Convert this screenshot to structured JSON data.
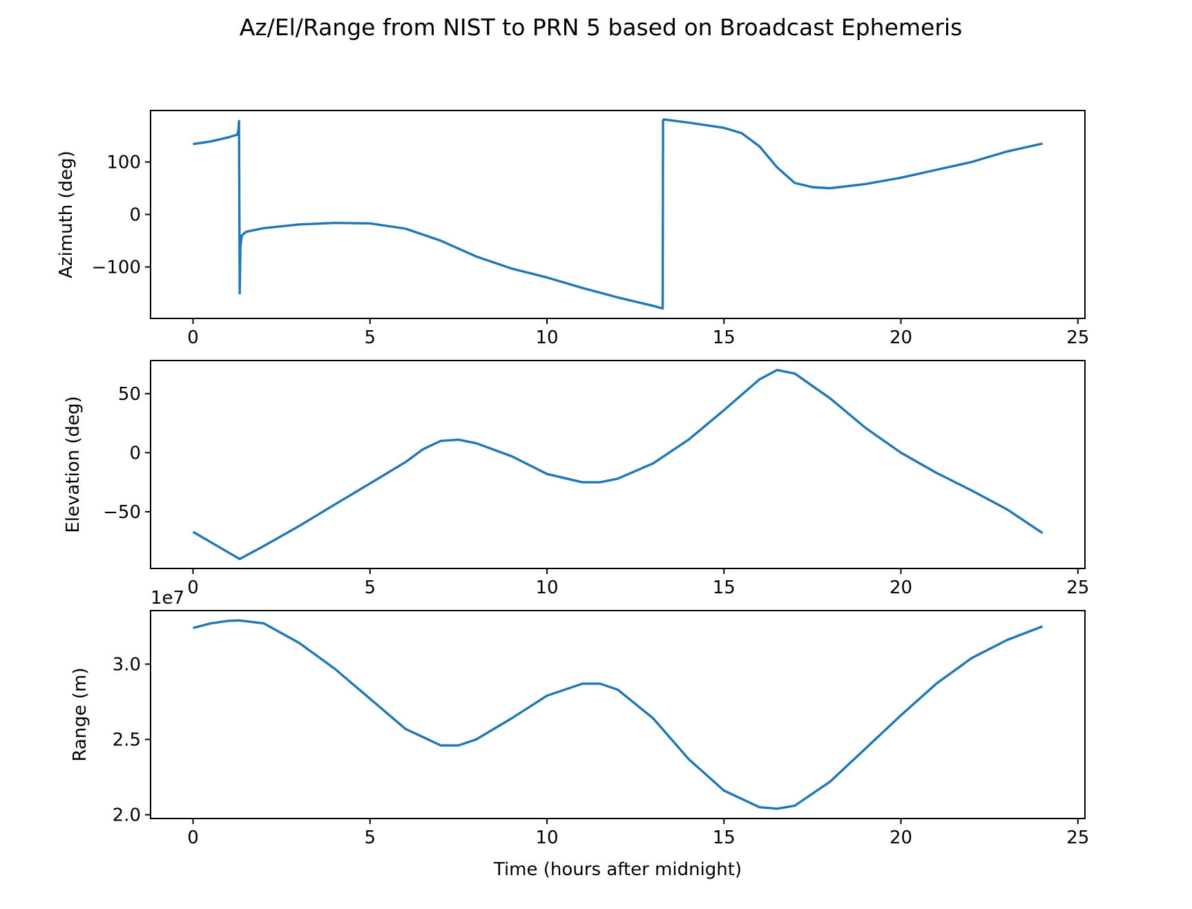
{
  "figure": {
    "title": "Az/El/Range from NIST to PRN 5 based on Broadcast Ephemeris"
  },
  "colors": {
    "series": "#1f77b4",
    "axes": "#000000",
    "background": "#ffffff"
  },
  "chart_data": [
    {
      "type": "line",
      "title": "",
      "xlabel": "",
      "ylabel": "Azimuth (deg)",
      "xlim": [
        -1.2,
        25.2
      ],
      "ylim": [
        -198,
        198
      ],
      "grid": false,
      "legend": "none",
      "xticks": [
        0,
        5,
        10,
        15,
        20,
        25
      ],
      "xtick_labels": [
        "0",
        "5",
        "10",
        "15",
        "20",
        "25"
      ],
      "yticks": [
        100,
        0,
        -100
      ],
      "ytick_labels": [
        "100",
        "0",
        "−100"
      ],
      "offset_text": "",
      "series": [
        {
          "name": "",
          "x": [
            0,
            0.5,
            1.0,
            1.25,
            1.28,
            1.3,
            1.32,
            1.34,
            1.38,
            1.5,
            2,
            3,
            4,
            5,
            6,
            7,
            8,
            9,
            10,
            11,
            12,
            13,
            13.27,
            13.28,
            13.3,
            14,
            15,
            15.5,
            16,
            16.5,
            17,
            17.5,
            18,
            19,
            20,
            21,
            22,
            23,
            24
          ],
          "y": [
            134,
            139,
            147,
            152,
            160,
            178,
            -150,
            -60,
            -40,
            -33,
            -26,
            -19,
            -16,
            -17,
            -27,
            -50,
            -80,
            -103,
            -120,
            -140,
            -158,
            -174,
            -179,
            179,
            181,
            175,
            165,
            155,
            130,
            90,
            60,
            52,
            50,
            58,
            70,
            85,
            100,
            120,
            135
          ]
        }
      ]
    },
    {
      "type": "line",
      "title": "",
      "xlabel": "",
      "ylabel": "Elevation (deg)",
      "xlim": [
        -1.2,
        25.2
      ],
      "ylim": [
        -98,
        78
      ],
      "grid": false,
      "legend": "none",
      "xticks": [
        0,
        5,
        10,
        15,
        20,
        25
      ],
      "xtick_labels": [
        "0",
        "5",
        "10",
        "15",
        "20",
        "25"
      ],
      "yticks": [
        50,
        0,
        -50
      ],
      "ytick_labels": [
        "50",
        "0",
        "−50"
      ],
      "offset_text": "",
      "series": [
        {
          "name": "",
          "x": [
            0,
            1.32,
            2,
            3,
            4,
            5,
            6,
            6.5,
            7,
            7.5,
            8,
            9,
            10,
            11,
            11.5,
            12,
            13,
            14,
            15,
            16,
            16.5,
            17,
            18,
            19,
            20,
            21,
            22,
            23,
            24
          ],
          "y": [
            -67,
            -90,
            -79,
            -62,
            -44,
            -26,
            -8,
            3,
            10,
            11,
            8,
            -3,
            -18,
            -25,
            -25,
            -22,
            -9,
            11,
            36,
            62,
            70,
            67,
            46,
            21,
            0,
            -17,
            -32,
            -48,
            -68
          ]
        }
      ]
    },
    {
      "type": "line",
      "title": "",
      "xlabel": "Time (hours after midnight)",
      "ylabel": "Range (m)",
      "xlim": [
        -1.2,
        25.2
      ],
      "ylim": [
        19750000.0,
        33550000.0
      ],
      "grid": false,
      "legend": "none",
      "xticks": [
        0,
        5,
        10,
        15,
        20,
        25
      ],
      "xtick_labels": [
        "0",
        "5",
        "10",
        "15",
        "20",
        "25"
      ],
      "yticks": [
        30000000.0,
        25000000.0,
        20000000.0
      ],
      "ytick_labels": [
        "3.0",
        "2.5",
        "2.0"
      ],
      "offset_text": "1e7",
      "series": [
        {
          "name": "",
          "x": [
            0,
            0.5,
            1.0,
            1.3,
            2,
            3,
            4,
            5,
            6,
            7,
            7.5,
            8,
            9,
            10,
            11,
            11.5,
            12,
            13,
            14,
            15,
            16,
            16.5,
            17,
            18,
            19,
            20,
            21,
            22,
            23,
            24
          ],
          "y": [
            32400000.0,
            32700000.0,
            32870000.0,
            32900000.0,
            32700000.0,
            31400000.0,
            29700000.0,
            27700000.0,
            25700000.0,
            24600000.0,
            24600000.0,
            25000000.0,
            26400000.0,
            27900000.0,
            28700000.0,
            28700000.0,
            28300000.0,
            26400000.0,
            23700000.0,
            21600000.0,
            20500000.0,
            20400000.0,
            20600000.0,
            22200000.0,
            24400000.0,
            26600000.0,
            28700000.0,
            30400000.0,
            31600000.0,
            32500000.0
          ]
        }
      ]
    }
  ]
}
